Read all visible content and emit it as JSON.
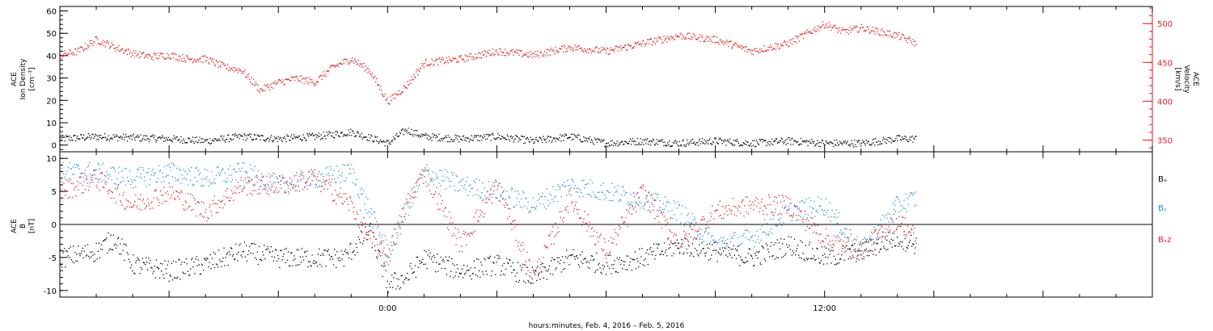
{
  "colors": {
    "black": "#000000",
    "red": "#e41a1c",
    "blue": "#1f8fe0"
  },
  "xaxis": {
    "label": "hours:minutes, Feb.  4, 2016 – Feb.  5, 2016",
    "ticks": [
      {
        "t": 0,
        "label": "0:00"
      },
      {
        "t": 12,
        "label": "12:00"
      }
    ],
    "range_hours": [
      -9,
      21
    ],
    "data_end_hours": 14.5
  },
  "chart_data": [
    {
      "type": "scatter",
      "panel": "top",
      "left_axis": {
        "label_lines": [
          "ACE",
          "Ion Density",
          "[cm⁻³]"
        ],
        "range": [
          -3,
          62
        ],
        "ticks": [
          0,
          10,
          20,
          30,
          40,
          50,
          60
        ]
      },
      "right_axis": {
        "label_lines": [
          "ACE",
          "Velocity",
          "[km/s]"
        ],
        "range": [
          335,
          522
        ],
        "ticks": [
          350,
          400,
          450,
          500
        ]
      },
      "series": [
        {
          "axis": "left",
          "color": "black",
          "x": [
            -9,
            -8,
            -7,
            -6,
            -5,
            -4,
            -3,
            -2,
            -1,
            0,
            0.5,
            1,
            2,
            3,
            4,
            5,
            6,
            7,
            8,
            9,
            10,
            11,
            12,
            13,
            14,
            14.5
          ],
          "y": [
            3,
            4,
            3.5,
            3,
            2,
            4,
            3,
            4,
            6,
            1,
            7,
            4,
            3,
            4,
            2,
            4,
            1,
            2,
            1,
            2,
            1,
            2,
            1,
            1,
            3,
            3
          ]
        },
        {
          "axis": "right",
          "color": "red",
          "x": [
            -9,
            -8.5,
            -8,
            -7.5,
            -7,
            -6.5,
            -6,
            -5.5,
            -5,
            -4.5,
            -4,
            -3.5,
            -3,
            -2.5,
            -2,
            -1.5,
            -1,
            -0.5,
            0,
            0.5,
            1,
            2,
            3,
            4,
            5,
            6,
            7,
            8,
            9,
            10,
            11,
            12,
            12.5,
            13,
            14,
            14.5
          ],
          "y": [
            460,
            465,
            480,
            470,
            462,
            458,
            460,
            455,
            455,
            445,
            440,
            415,
            425,
            430,
            425,
            445,
            455,
            440,
            400,
            420,
            450,
            455,
            465,
            460,
            470,
            465,
            475,
            485,
            480,
            465,
            475,
            500,
            490,
            495,
            485,
            475
          ]
        }
      ]
    },
    {
      "type": "scatter",
      "panel": "bottom",
      "left_axis": {
        "label_lines": [
          "ACE",
          "B",
          "[nT]"
        ],
        "range": [
          -11,
          11
        ],
        "ticks": [
          -10,
          -5,
          0,
          5,
          10
        ]
      },
      "zero_line": true,
      "legend": {
        "position": "right",
        "items": [
          {
            "name": "Bₓ",
            "color": "black"
          },
          {
            "name": "Bᵧ",
            "color": "blue"
          },
          {
            "name": "Bₓz",
            "color": "red"
          }
        ]
      },
      "series": [
        {
          "name": "Bx",
          "color": "black",
          "x": [
            -9,
            -8,
            -7.5,
            -7,
            -6,
            -5,
            -4,
            -3,
            -2,
            -1.2,
            -0.5,
            0,
            0.5,
            1,
            2,
            3,
            4,
            5,
            6,
            7,
            8,
            9,
            10,
            11,
            12,
            13,
            14,
            14.5
          ],
          "y": [
            -5,
            -4,
            -2,
            -6,
            -7,
            -6,
            -4,
            -5,
            -5,
            -5,
            -1,
            -9,
            -8,
            -5,
            -7,
            -6,
            -8,
            -5,
            -6,
            -5,
            -3,
            -4,
            -5,
            -3,
            -5,
            -4,
            -2,
            -3
          ]
        },
        {
          "name": "By",
          "color": "blue",
          "x": [
            -9,
            -8,
            -7,
            -6,
            -5,
            -4,
            -3,
            -2,
            -1,
            -0.5,
            0,
            0.5,
            1,
            2,
            3,
            4,
            5,
            6,
            7,
            8,
            9,
            10,
            11,
            12,
            13,
            14,
            14.5
          ],
          "y": [
            8,
            8,
            7,
            8,
            7,
            8,
            6,
            7,
            8,
            2,
            -4,
            2,
            8,
            6,
            5,
            3,
            6,
            5,
            4,
            2,
            -3,
            -2,
            2,
            3,
            -4,
            3,
            4
          ]
        },
        {
          "name": "Bz",
          "color": "red",
          "x": [
            -9,
            -8,
            -7,
            -6,
            -5,
            -4,
            -3,
            -2,
            -1,
            -0.5,
            0,
            0.5,
            1,
            2,
            3,
            4,
            5,
            6,
            7,
            8,
            9,
            10,
            11,
            12,
            13,
            14,
            14.5
          ],
          "y": [
            5,
            7,
            3,
            5,
            2,
            6,
            6,
            7,
            3,
            -2,
            -5,
            3,
            8,
            -3,
            6,
            -8,
            4,
            -4,
            5,
            -3,
            2,
            3,
            3,
            -2,
            -4,
            1,
            -2
          ]
        }
      ]
    }
  ]
}
